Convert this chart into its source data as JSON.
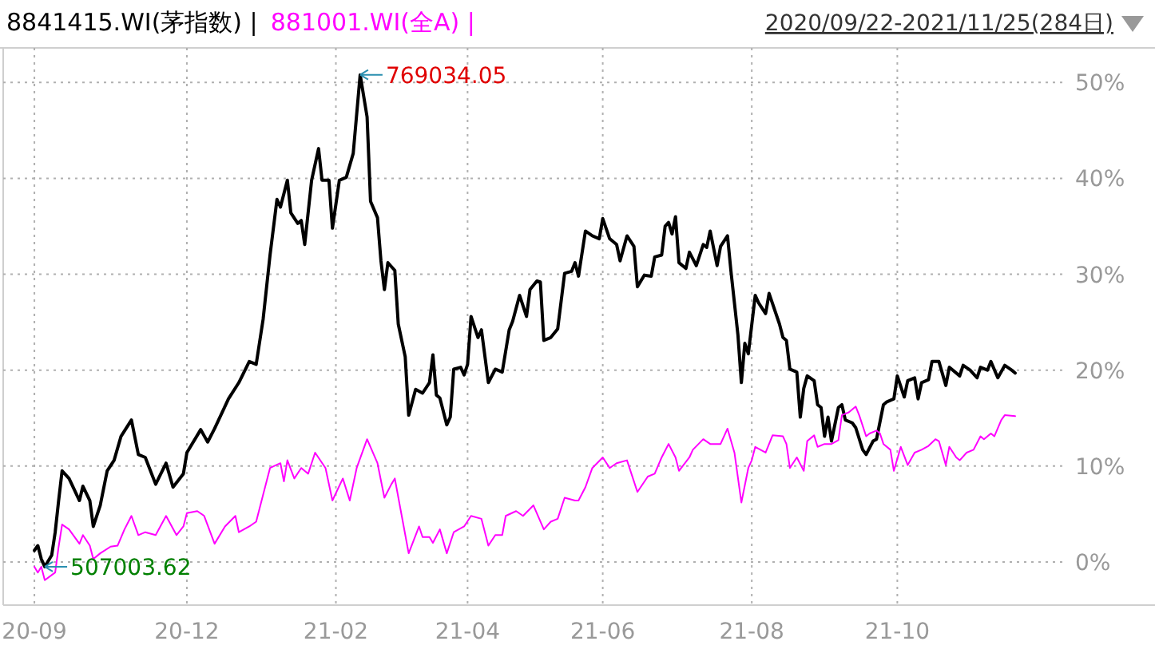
{
  "chart_data": {
    "type": "line",
    "subtitle": "2020/09/22-2021/11/25(284日)",
    "categories": [
      "20-09",
      null,
      null,
      null,
      null,
      null,
      null,
      null,
      null,
      null,
      null,
      null,
      null,
      null,
      null,
      null,
      null,
      null,
      null,
      null,
      null,
      null,
      null,
      null,
      null,
      null,
      null,
      null,
      null,
      null,
      null,
      null,
      null,
      null,
      null,
      null,
      null,
      null,
      null,
      null,
      null,
      null,
      null,
      null,
      "20-12",
      null,
      null,
      null,
      null,
      null,
      null,
      null,
      null,
      null,
      null,
      null,
      null,
      null,
      null,
      null,
      null,
      null,
      null,
      null,
      null,
      null,
      null,
      null,
      null,
      null,
      null,
      null,
      null,
      null,
      null,
      null,
      null,
      null,
      null,
      null,
      null,
      null,
      null,
      null,
      null,
      null,
      null,
      "21-02",
      null,
      null,
      null,
      null,
      null,
      null,
      null,
      null,
      null,
      null,
      null,
      null,
      null,
      null,
      null,
      null,
      null,
      null,
      null,
      null,
      null,
      null,
      null,
      null,
      null,
      null,
      null,
      null,
      null,
      null,
      null,
      null,
      null,
      null,
      null,
      null,
      null,
      "21-04",
      null,
      null,
      null,
      null,
      null,
      null,
      null,
      null,
      null,
      null,
      null,
      null,
      null,
      null,
      null,
      null,
      null,
      null,
      null,
      null,
      null,
      null,
      null,
      null,
      null,
      null,
      null,
      null,
      null,
      null,
      null,
      null,
      null,
      null,
      null,
      null,
      null,
      null,
      "21-06",
      null,
      null,
      null,
      null,
      null,
      null,
      null,
      null,
      null,
      null,
      null,
      null,
      null,
      null,
      null,
      null,
      null,
      null,
      null,
      null,
      null,
      null,
      null,
      null,
      null,
      null,
      null,
      null,
      null,
      null,
      null,
      null,
      null,
      null,
      null,
      null,
      null,
      null,
      null,
      null,
      null,
      null,
      "21-08",
      null,
      null,
      null,
      null,
      null,
      null,
      null,
      null,
      null,
      null,
      null,
      null,
      null,
      null,
      null,
      null,
      null,
      null,
      null,
      null,
      null,
      null,
      null,
      null,
      null,
      null,
      null,
      null,
      null,
      null,
      null,
      null,
      null,
      null,
      null,
      null,
      null,
      null,
      null,
      null,
      null,
      "21-10",
      null,
      null,
      null,
      null,
      null,
      null,
      null,
      null,
      null,
      null,
      null,
      null,
      null,
      null,
      null,
      null,
      null,
      null,
      null,
      null,
      null,
      null,
      null,
      null,
      null,
      null,
      null,
      null,
      null,
      null,
      null,
      null,
      null,
      null
    ],
    "ylim": [
      -4.5,
      53.6
    ],
    "yticks": [
      {
        "value": 0,
        "label": "0%"
      },
      {
        "value": 10,
        "label": "10%"
      },
      {
        "value": 20,
        "label": "20%"
      },
      {
        "value": 30,
        "label": "30%"
      },
      {
        "value": 40,
        "label": "40%"
      },
      {
        "value": 50,
        "label": "50%"
      }
    ],
    "grid": true,
    "legend": "top left",
    "line_style": "solid",
    "marker": "none",
    "annotations": [
      "769034.05",
      "507003.62"
    ],
    "series": [
      {
        "name": "8841415.WI(茅指数) |",
        "color": "#000000",
        "values": [
          1.2,
          1.7,
          0.3,
          -0.5,
          null,
          0.7,
          3.1,
          6.4,
          9.5,
          null,
          8.7,
          null,
          null,
          6.4,
          7.9,
          null,
          6.4,
          3.7,
          null,
          5.9,
          null,
          9.5,
          null,
          10.6,
          null,
          13.1,
          null,
          null,
          14.8,
          null,
          11.2,
          null,
          10.9,
          null,
          null,
          8.1,
          null,
          null,
          10.3,
          null,
          7.8,
          null,
          null,
          9.2,
          11.4,
          null,
          null,
          null,
          13.8,
          null,
          12.5,
          null,
          13.9,
          null,
          null,
          null,
          17.0,
          null,
          null,
          18.7,
          null,
          null,
          20.9,
          null,
          20.6,
          null,
          25.3,
          null,
          32.0,
          null,
          37.8,
          37.0,
          null,
          39.8,
          36.4,
          null,
          35.3,
          35.6,
          33.1,
          null,
          39.8,
          null,
          43.1,
          39.8,
          null,
          39.8,
          34.8,
          null,
          39.8,
          null,
          40.1,
          null,
          42.6,
          null,
          50.8,
          null,
          46.4,
          37.6,
          null,
          35.9,
          31.4,
          28.4,
          31.2,
          null,
          30.4,
          24.8,
          null,
          21.4,
          15.3,
          null,
          18.0,
          null,
          17.6,
          null,
          18.7,
          21.6,
          17.4,
          17.1,
          null,
          14.3,
          15.1,
          20.1,
          null,
          20.3,
          19.5,
          20.6,
          25.6,
          null,
          23.4,
          24.2,
          null,
          18.7,
          null,
          20.1,
          null,
          19.8,
          null,
          24.2,
          25.1,
          null,
          27.8,
          null,
          25.6,
          28.4,
          null,
          29.3,
          29.2,
          23.1,
          null,
          23.4,
          null,
          24.3,
          null,
          30.1,
          null,
          30.3,
          31.2,
          29.8,
          null,
          34.5,
          null,
          34.0,
          null,
          33.7,
          35.8,
          null,
          33.7,
          null,
          33.1,
          31.4,
          null,
          34.0,
          null,
          32.9,
          28.7,
          null,
          29.9,
          null,
          29.8,
          31.8,
          null,
          32.0,
          35.0,
          35.4,
          34.2,
          36.0,
          31.2,
          null,
          30.6,
          32.3,
          null,
          30.9,
          null,
          33.1,
          32.8,
          34.5,
          null,
          30.9,
          32.9,
          null,
          34.0,
          30.3,
          null,
          23.7,
          18.7,
          22.8,
          21.7,
          null,
          27.8,
          27.0,
          null,
          25.9,
          28.0,
          null,
          null,
          24.8,
          23.4,
          23.1,
          20.1,
          null,
          19.8,
          15.1,
          18.1,
          19.4,
          null,
          18.9,
          16.4,
          16.1,
          13.1,
          15.1,
          12.6,
          null,
          16.1,
          16.4,
          14.8,
          null,
          14.5,
          14.0,
          null,
          11.7,
          11.2,
          null,
          12.6,
          12.8,
          null,
          16.4,
          16.7,
          null,
          17.0,
          19.4,
          null,
          17.2,
          18.9,
          null,
          19.2,
          17.0,
          18.7,
          null,
          19.0,
          20.9,
          null,
          20.9,
          null,
          18.4,
          20.3,
          null,
          null,
          19.4,
          20.5,
          null,
          20.0,
          null,
          19.2,
          20.3,
          null,
          20.0,
          20.9,
          null,
          19.2,
          null,
          20.5,
          null,
          20.0,
          19.7
        ]
      },
      {
        "name": "881001.WI(全A) |",
        "color": "#ff00ff",
        "values": [
          -0.5,
          -1.1,
          -0.5,
          -1.9,
          null,
          null,
          -1.1,
          1.6,
          3.9,
          null,
          3.4,
          null,
          null,
          1.9,
          2.8,
          null,
          1.7,
          0.3,
          null,
          0.9,
          null,
          null,
          1.6,
          null,
          1.7,
          null,
          3.4,
          null,
          4.8,
          null,
          2.8,
          null,
          3.1,
          null,
          null,
          2.8,
          null,
          null,
          4.8,
          null,
          null,
          2.8,
          null,
          3.7,
          5.1,
          null,
          null,
          5.3,
          null,
          4.8,
          null,
          null,
          1.9,
          null,
          null,
          3.7,
          null,
          null,
          4.8,
          3.1,
          null,
          null,
          3.7,
          null,
          4.2,
          null,
          7.0,
          null,
          9.8,
          null,
          null,
          10.3,
          8.4,
          10.6,
          null,
          8.7,
          null,
          9.8,
          null,
          9.2,
          null,
          11.4,
          null,
          null,
          9.8,
          null,
          6.4,
          null,
          null,
          8.7,
          null,
          6.4,
          null,
          9.8,
          null,
          null,
          12.8,
          null,
          null,
          10.3,
          null,
          6.7,
          null,
          8.1,
          8.7,
          null,
          4.8,
          null,
          0.9,
          null,
          null,
          3.7,
          2.6,
          null,
          2.6,
          2.0,
          null,
          3.4,
          null,
          0.9,
          null,
          3.1,
          null,
          null,
          3.7,
          null,
          4.8,
          null,
          null,
          4.5,
          null,
          1.7,
          null,
          2.8,
          null,
          2.8,
          4.8,
          null,
          null,
          5.3,
          null,
          4.8,
          null,
          null,
          5.9,
          null,
          null,
          3.4,
          null,
          4.2,
          null,
          4.5,
          null,
          6.7,
          null,
          null,
          6.4,
          6.4,
          null,
          7.8,
          null,
          9.8,
          null,
          null,
          10.9,
          null,
          9.8,
          null,
          10.3,
          null,
          null,
          10.6,
          null,
          null,
          7.3,
          null,
          null,
          8.9,
          null,
          9.2,
          null,
          10.9,
          null,
          12.3,
          null,
          10.9,
          9.5,
          null,
          null,
          10.9,
          11.7,
          null,
          null,
          12.8,
          null,
          12.3,
          null,
          null,
          12.3,
          null,
          13.9,
          null,
          11.4,
          null,
          6.2,
          null,
          9.8,
          10.6,
          12.0,
          null,
          null,
          11.4,
          null,
          13.2,
          null,
          null,
          13.1,
          12.3,
          9.8,
          null,
          10.9,
          null,
          9.5,
          12.6,
          null,
          13.2,
          12.0,
          null,
          12.3,
          null,
          12.3,
          null,
          12.7,
          15.3,
          null,
          15.6,
          null,
          16.2,
          15.3,
          null,
          13.1,
          13.4,
          null,
          13.7,
          13.4,
          12.3,
          null,
          11.7,
          9.5,
          null,
          12.0,
          null,
          10.1,
          null,
          11.4,
          null,
          11.7,
          null,
          12.1,
          null,
          12.8,
          12.6,
          null,
          10.1,
          12.0,
          null,
          10.9,
          10.6,
          null,
          11.4,
          null,
          11.7,
          null,
          13.1,
          12.8,
          null,
          13.4,
          13.1,
          null,
          14.8,
          15.3,
          null,
          null,
          15.2
        ]
      }
    ]
  }
}
